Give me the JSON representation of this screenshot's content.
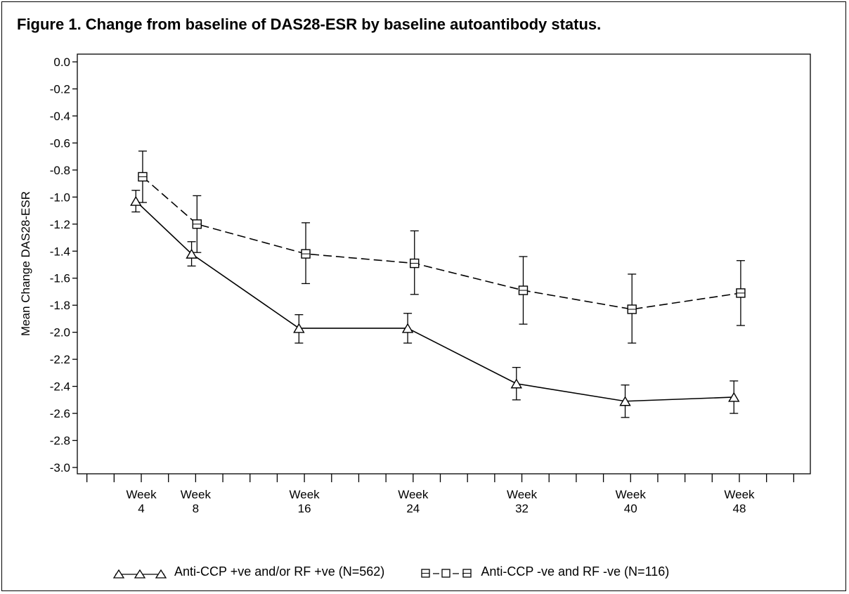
{
  "figure": {
    "title": "Figure 1. Change from baseline of DAS28-ESR by baseline autoantibody status."
  },
  "chart_data": {
    "type": "line",
    "title": "Figure 1. Change from baseline of DAS28-ESR by baseline autoantibody status.",
    "xlabel": "",
    "ylabel": "Mean Change DAS28-ESR",
    "ylim": [
      -3.0,
      0.0
    ],
    "yticks": [
      "0.0",
      "-0.2",
      "-0.4",
      "-0.6",
      "-0.8",
      "-1.0",
      "-1.2",
      "-1.4",
      "-1.6",
      "-1.8",
      "-2.0",
      "-2.2",
      "-2.4",
      "-2.6",
      "-2.8",
      "-3.0"
    ],
    "xlim": [
      1,
      51
    ],
    "xticks_minor": [
      0,
      2,
      4,
      6,
      8,
      10,
      12,
      14,
      16,
      18,
      20,
      22,
      24,
      26,
      28,
      30,
      32,
      34,
      36,
      38,
      40,
      42,
      44,
      46,
      48,
      50,
      52
    ],
    "xtick_labels": [
      {
        "x": 4,
        "line1": "Week",
        "line2": "4"
      },
      {
        "x": 8,
        "line1": "Week",
        "line2": "8"
      },
      {
        "x": 16,
        "line1": "Week",
        "line2": "16"
      },
      {
        "x": 24,
        "line1": "Week",
        "line2": "24"
      },
      {
        "x": 32,
        "line1": "Week",
        "line2": "32"
      },
      {
        "x": 40,
        "line1": "Week",
        "line2": "40"
      },
      {
        "x": 48,
        "line1": "Week",
        "line2": "48"
      }
    ],
    "grid": false,
    "legend_position": "bottom",
    "series": [
      {
        "name": "Anti-CCP +ve and/or RF +ve (N=562)",
        "marker": "triangle",
        "line_style": "solid",
        "x": [
          3.6,
          7.7,
          15.6,
          23.6,
          31.6,
          39.6,
          47.6
        ],
        "y": [
          -1.03,
          -1.42,
          -1.97,
          -1.97,
          -2.38,
          -2.51,
          -2.48
        ],
        "err_low": [
          -1.11,
          -1.51,
          -2.08,
          -2.08,
          -2.5,
          -2.63,
          -2.6
        ],
        "err_high": [
          -0.95,
          -1.33,
          -1.87,
          -1.86,
          -2.26,
          -2.39,
          -2.36
        ]
      },
      {
        "name": "Anti-CCP -ve and RF -ve (N=116)",
        "marker": "square",
        "line_style": "dashed",
        "x": [
          4.1,
          8.1,
          16.1,
          24.1,
          32.1,
          40.1,
          48.1
        ],
        "y": [
          -0.85,
          -1.2,
          -1.42,
          -1.49,
          -1.69,
          -1.83,
          -1.71
        ],
        "err_low": [
          -1.04,
          -1.41,
          -1.64,
          -1.72,
          -1.94,
          -2.08,
          -1.95
        ],
        "err_high": [
          -0.66,
          -0.99,
          -1.19,
          -1.25,
          -1.44,
          -1.57,
          -1.47
        ]
      }
    ]
  }
}
